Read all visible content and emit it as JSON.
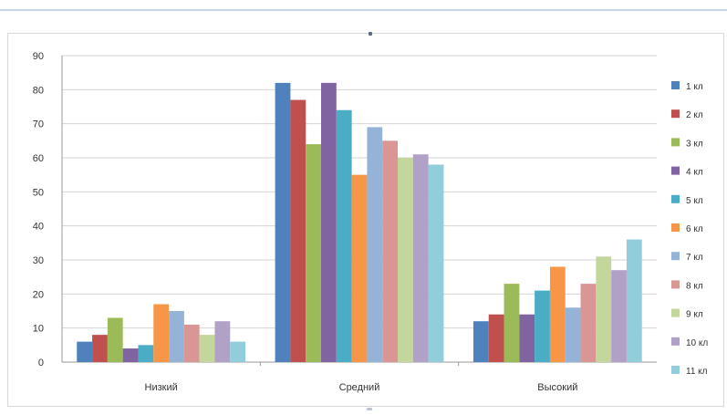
{
  "chart_data": {
    "type": "bar",
    "title": "",
    "xlabel": "",
    "ylabel": "",
    "ylim": [
      0,
      90
    ],
    "yticks": [
      0,
      10,
      20,
      30,
      40,
      50,
      60,
      70,
      80,
      90
    ],
    "grid": true,
    "legend_position": "right",
    "categories": [
      "Низкий",
      "Средний",
      "Высокий"
    ],
    "series": [
      {
        "name": "1 кл",
        "color": "#4f81bd",
        "values": [
          6,
          82,
          12
        ]
      },
      {
        "name": "2 кл",
        "color": "#c0504d",
        "values": [
          8,
          77,
          14
        ]
      },
      {
        "name": "3 кл",
        "color": "#9bbb59",
        "values": [
          13,
          64,
          23
        ]
      },
      {
        "name": "4 кл",
        "color": "#8064a2",
        "values": [
          4,
          82,
          14
        ]
      },
      {
        "name": "5 кл",
        "color": "#4bacc6",
        "values": [
          5,
          74,
          21
        ]
      },
      {
        "name": "6 кл",
        "color": "#f79646",
        "values": [
          17,
          55,
          28
        ]
      },
      {
        "name": "7 кл",
        "color": "#95b3d7",
        "values": [
          15,
          69,
          16
        ]
      },
      {
        "name": "8 кл",
        "color": "#da9694",
        "values": [
          11,
          65,
          23
        ]
      },
      {
        "name": "9 кл",
        "color": "#c3d69b",
        "values": [
          8,
          60,
          31
        ]
      },
      {
        "name": "10 кл",
        "color": "#b2a1c7",
        "values": [
          12,
          61,
          27
        ]
      },
      {
        "name": "11 кл",
        "color": "#92cddc",
        "values": [
          6,
          58,
          36
        ]
      }
    ]
  }
}
